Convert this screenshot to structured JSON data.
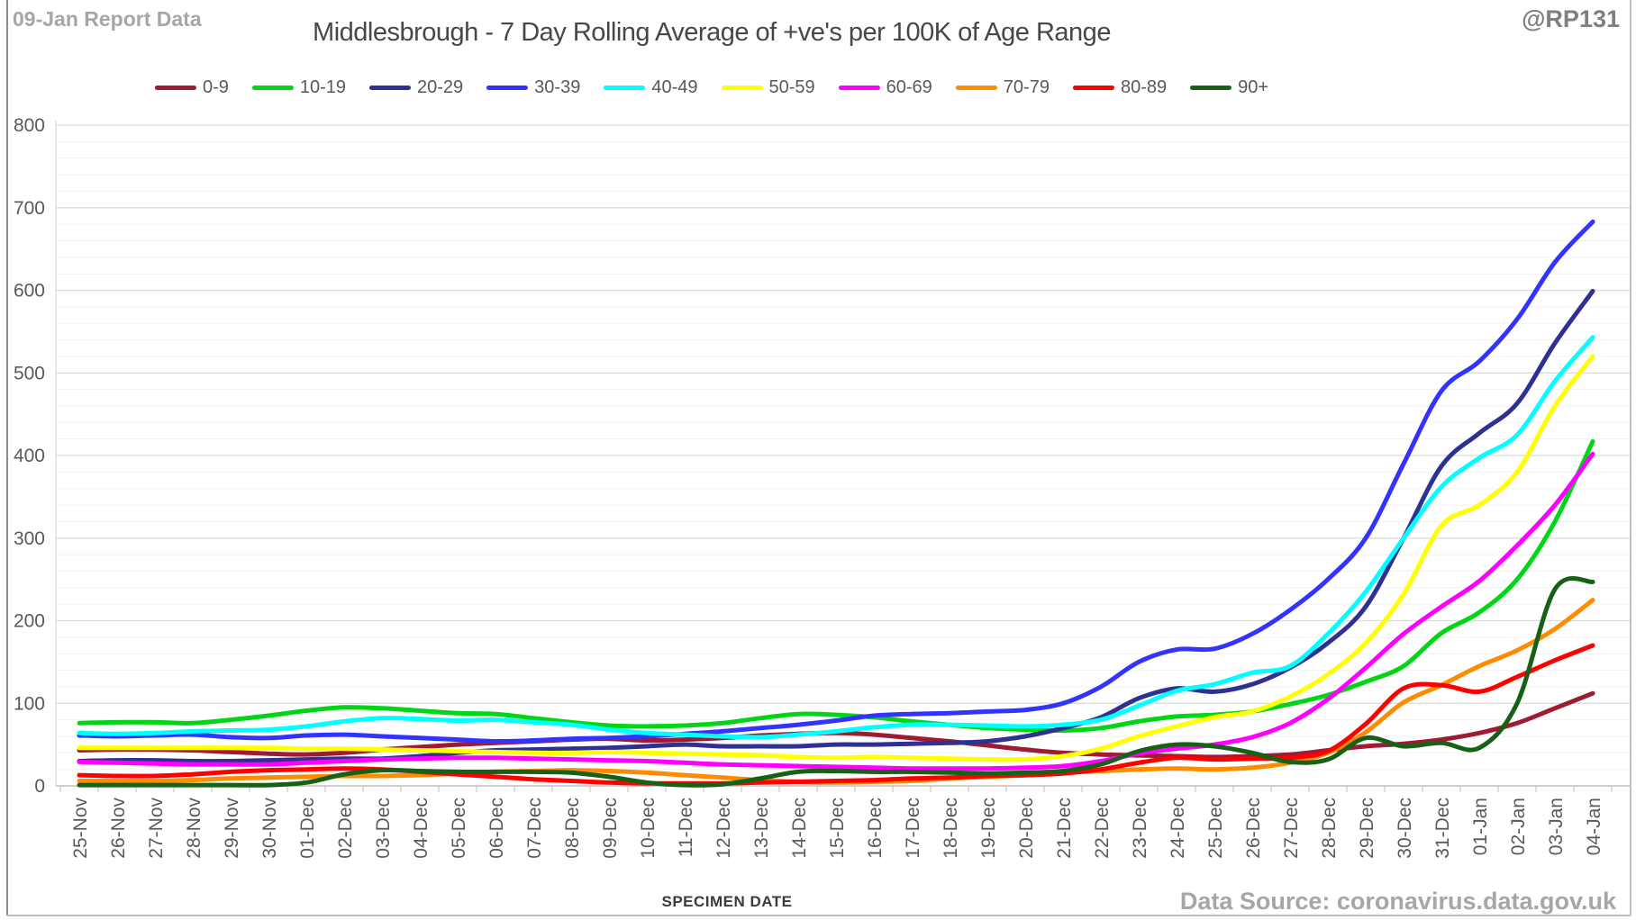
{
  "header": {
    "report_label": "09-Jan Report Data",
    "handle": "@RP131"
  },
  "footer": {
    "source": "Data Source: coronavirus.data.gov.uk"
  },
  "chart_data": {
    "type": "line",
    "title": "Middlesbrough - 7 Day Rolling Average of +ve's per 100K of Age Range",
    "xlabel": "SPECIMEN DATE",
    "ylabel": "",
    "ylim": [
      0,
      800
    ],
    "ytick_step": 100,
    "yminor_step": 20,
    "grid": true,
    "legend_position": "top",
    "x": [
      "25-Nov",
      "26-Nov",
      "27-Nov",
      "28-Nov",
      "29-Nov",
      "30-Nov",
      "01-Dec",
      "02-Dec",
      "03-Dec",
      "04-Dec",
      "05-Dec",
      "06-Dec",
      "07-Dec",
      "08-Dec",
      "09-Dec",
      "10-Dec",
      "11-Dec",
      "12-Dec",
      "13-Dec",
      "14-Dec",
      "15-Dec",
      "16-Dec",
      "17-Dec",
      "18-Dec",
      "19-Dec",
      "20-Dec",
      "21-Dec",
      "22-Dec",
      "23-Dec",
      "24-Dec",
      "25-Dec",
      "26-Dec",
      "27-Dec",
      "28-Dec",
      "29-Dec",
      "30-Dec",
      "31-Dec",
      "01-Jan",
      "02-Jan",
      "03-Jan",
      "04-Jan"
    ],
    "series": [
      {
        "name": "0-9",
        "color": "#9e1b32",
        "values": [
          43,
          44,
          44,
          43,
          41,
          39,
          38,
          40,
          44,
          47,
          50,
          52,
          54,
          56,
          57,
          55,
          56,
          58,
          61,
          63,
          64,
          62,
          58,
          54,
          49,
          44,
          40,
          38,
          37,
          36,
          35,
          36,
          38,
          43,
          48,
          51,
          56,
          64,
          76,
          94,
          112
        ]
      },
      {
        "name": "10-19",
        "color": "#00d615",
        "values": [
          76,
          77,
          77,
          76,
          80,
          85,
          91,
          95,
          94,
          91,
          88,
          87,
          82,
          77,
          73,
          72,
          73,
          76,
          82,
          87,
          86,
          83,
          78,
          74,
          70,
          68,
          67,
          70,
          78,
          84,
          86,
          90,
          99,
          110,
          126,
          145,
          185,
          210,
          250,
          320,
          417
        ]
      },
      {
        "name": "20-29",
        "color": "#2e3192",
        "values": [
          30,
          31,
          31,
          30,
          30,
          31,
          32,
          33,
          33,
          36,
          40,
          43,
          44,
          45,
          46,
          48,
          50,
          48,
          48,
          48,
          50,
          50,
          51,
          52,
          54,
          60,
          70,
          83,
          106,
          118,
          114,
          123,
          143,
          173,
          217,
          300,
          387,
          427,
          463,
          536,
          599
        ]
      },
      {
        "name": "30-39",
        "color": "#3333ff",
        "values": [
          61,
          60,
          61,
          62,
          59,
          58,
          61,
          62,
          60,
          58,
          56,
          54,
          55,
          57,
          58,
          60,
          63,
          66,
          70,
          74,
          79,
          85,
          87,
          88,
          90,
          92,
          100,
          120,
          150,
          165,
          166,
          184,
          213,
          250,
          300,
          390,
          478,
          514,
          565,
          634,
          683
        ]
      },
      {
        "name": "40-49",
        "color": "#00ffff",
        "values": [
          64,
          63,
          64,
          66,
          67,
          68,
          72,
          78,
          82,
          81,
          79,
          80,
          77,
          74,
          68,
          64,
          62,
          60,
          59,
          62,
          66,
          71,
          74,
          74,
          73,
          72,
          74,
          80,
          97,
          115,
          123,
          137,
          145,
          184,
          235,
          300,
          362,
          397,
          425,
          490,
          543
        ]
      },
      {
        "name": "50-59",
        "color": "#ffff00",
        "values": [
          46,
          46,
          46,
          46,
          46,
          46,
          45,
          45,
          44,
          43,
          42,
          41,
          40,
          40,
          41,
          40,
          39,
          38,
          37,
          35,
          34,
          35,
          34,
          33,
          32,
          32,
          36,
          45,
          60,
          72,
          83,
          90,
          108,
          135,
          173,
          232,
          315,
          340,
          380,
          460,
          520
        ]
      },
      {
        "name": "60-69",
        "color": "#ff00ff",
        "values": [
          29,
          28,
          27,
          26,
          26,
          26,
          28,
          30,
          32,
          33,
          34,
          34,
          33,
          32,
          31,
          30,
          28,
          26,
          25,
          24,
          23,
          22,
          21,
          21,
          21,
          22,
          24,
          30,
          39,
          45,
          50,
          59,
          76,
          105,
          143,
          184,
          217,
          248,
          291,
          340,
          402
        ]
      },
      {
        "name": "70-79",
        "color": "#ff8c00",
        "values": [
          6,
          6,
          6,
          7,
          9,
          10,
          11,
          12,
          12,
          13,
          15,
          17,
          18,
          19,
          18,
          16,
          13,
          10,
          7,
          5,
          4,
          5,
          6,
          9,
          11,
          13,
          16,
          18,
          20,
          21,
          20,
          22,
          28,
          40,
          65,
          101,
          122,
          145,
          164,
          190,
          225
        ]
      },
      {
        "name": "80-89",
        "color": "#ff0000",
        "values": [
          13,
          12,
          12,
          14,
          17,
          19,
          20,
          21,
          20,
          17,
          14,
          11,
          8,
          6,
          4,
          3,
          3,
          3,
          4,
          5,
          6,
          7,
          9,
          10,
          12,
          13,
          15,
          20,
          28,
          34,
          32,
          33,
          34,
          42,
          75,
          118,
          122,
          114,
          132,
          152,
          170
        ]
      },
      {
        "name": "90+",
        "color": "#176117",
        "values": [
          1,
          1,
          1,
          1,
          1,
          1,
          4,
          14,
          19,
          18,
          17,
          17,
          17,
          16,
          11,
          4,
          1,
          2,
          9,
          17,
          18,
          17,
          17,
          16,
          15,
          16,
          18,
          26,
          42,
          50,
          48,
          40,
          29,
          32,
          58,
          48,
          52,
          46,
          100,
          238,
          247
        ]
      }
    ]
  }
}
